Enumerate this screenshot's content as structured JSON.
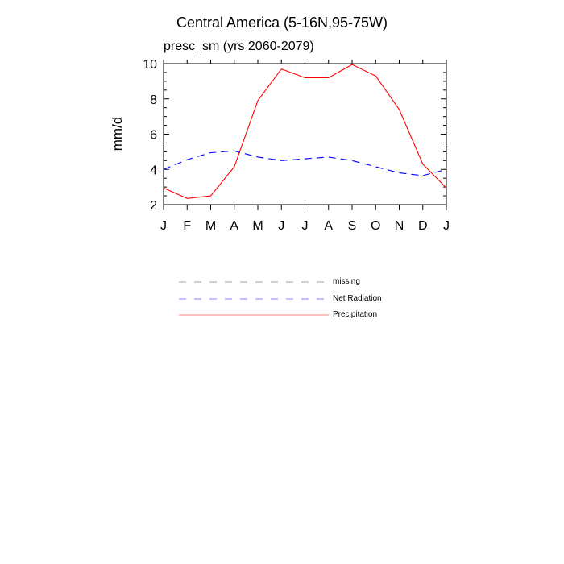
{
  "title": "Central America (5-16N,95-75W)",
  "subtitle": "presc_sm (yrs 2060-2079)",
  "chart_data": {
    "type": "line",
    "title": "Central America (5-16N,95-75W)",
    "subtitle": "presc_sm (yrs 2060-2079)",
    "xlabel": "",
    "ylabel": "mm/d",
    "ylim": [
      2,
      10
    ],
    "yticks": [
      2,
      4,
      6,
      8,
      10
    ],
    "categories": [
      "J",
      "F",
      "M",
      "A",
      "M",
      "J",
      "J",
      "A",
      "S",
      "O",
      "N",
      "D",
      "J"
    ],
    "grid": false,
    "series": [
      {
        "name": "Precipitation",
        "style": "solid",
        "color": "#ff0000",
        "values": [
          2.95,
          2.35,
          2.5,
          4.15,
          7.9,
          9.7,
          9.2,
          9.2,
          9.95,
          9.3,
          7.4,
          4.3,
          2.95
        ]
      },
      {
        "name": "Net Radiation",
        "style": "dashed",
        "color": "#0000ff",
        "values": [
          4.0,
          4.55,
          4.95,
          5.05,
          4.7,
          4.5,
          4.6,
          4.7,
          4.5,
          4.15,
          3.8,
          3.65,
          4.0
        ]
      }
    ],
    "legend": {
      "placement": "bottom",
      "entries": [
        {
          "label": "missing",
          "style": "dashed",
          "color": "#a0a0a0"
        },
        {
          "label": "Net Radiation",
          "style": "dashed",
          "color": "#8080ff"
        },
        {
          "label": "Precipitation",
          "style": "solid",
          "color": "#ff8080"
        }
      ]
    }
  }
}
